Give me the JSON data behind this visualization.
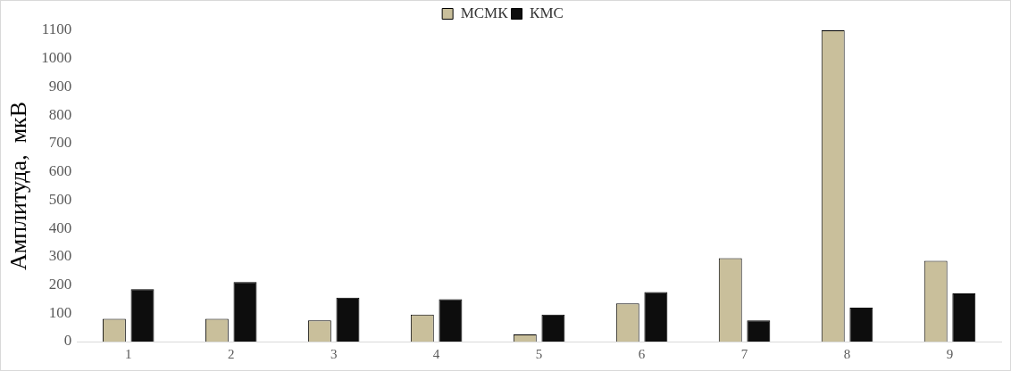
{
  "chart_data": {
    "type": "bar",
    "ylabel": "Амплитуда,  мкВ",
    "categories": [
      "1",
      "2",
      "3",
      "4",
      "5",
      "6",
      "7",
      "8",
      "9"
    ],
    "series": [
      {
        "name": "МСМК",
        "color": "#c9bf9b",
        "values": [
          80,
          80,
          75,
          95,
          25,
          135,
          295,
          1100,
          285
        ]
      },
      {
        "name": "КМС",
        "color": "#0d0d0d",
        "values": [
          185,
          210,
          155,
          150,
          95,
          175,
          75,
          120,
          170
        ]
      }
    ],
    "ylim": [
      0,
      1100
    ],
    "yticks": [
      0,
      100,
      200,
      300,
      400,
      500,
      600,
      700,
      800,
      900,
      1000,
      1100
    ],
    "grid": false,
    "legend": "top"
  }
}
